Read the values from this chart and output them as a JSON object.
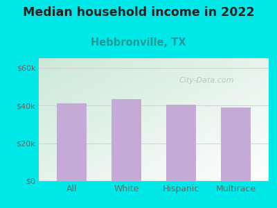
{
  "title": "Median household income in 2022",
  "subtitle": "Hebbronville, TX",
  "categories": [
    "All",
    "White",
    "Hispanic",
    "Multirace"
  ],
  "values": [
    41000,
    43500,
    40500,
    39000
  ],
  "bar_color": "#c4aad4",
  "background_color": "#00e8e8",
  "plot_bg_topleft": "#cce8d8",
  "plot_bg_bottomright": "#ffffff",
  "title_color": "#222222",
  "subtitle_color": "#229999",
  "tick_color": "#666666",
  "yticks": [
    0,
    20000,
    40000,
    60000
  ],
  "ytick_labels": [
    "$0",
    "$20k",
    "$40k",
    "$60k"
  ],
  "ylim": [
    0,
    65000
  ],
  "watermark": "City-Data.com",
  "title_fontsize": 12.5,
  "subtitle_fontsize": 10.5
}
